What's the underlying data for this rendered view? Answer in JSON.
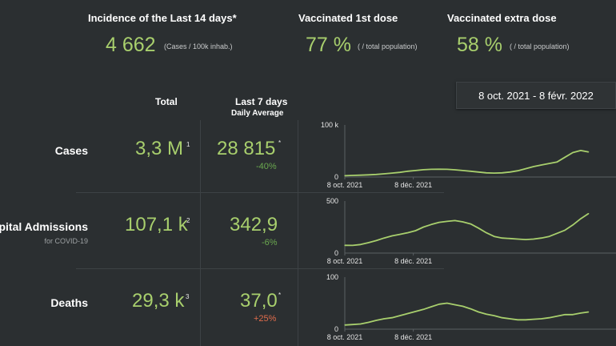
{
  "kpis": {
    "incidence": {
      "title": "Incidence of the Last 14 days*",
      "value": "4 662",
      "unit": "(Cases / 100k inhab.)"
    },
    "vacc1": {
      "title": "Vaccinated 1st dose",
      "value": "77 %",
      "unit": "( / total population)"
    },
    "vaccx": {
      "title": "Vaccinated extra dose",
      "value": "58 %",
      "unit": "( / total population)"
    }
  },
  "table": {
    "col_total": "Total",
    "col_last7": "Last 7 days",
    "col_daily": "Daily Average",
    "rows": [
      {
        "label": "Cases",
        "sub": "",
        "total": "3,3 M",
        "total_note": "1",
        "last7": "28 815",
        "last7_note": "*",
        "pct": "-40%",
        "trend": "down"
      },
      {
        "label": "Hospital Admissions",
        "sub": "for COVID-19",
        "total": "107,1 k",
        "total_note": "2",
        "last7": "342,9",
        "last7_note": "",
        "pct": "-6%",
        "trend": "down"
      },
      {
        "label": "Deaths",
        "sub": "",
        "total": "29,3 k",
        "total_note": "3",
        "last7": "37,0",
        "last7_note": "*",
        "pct": "+25%",
        "trend": "up"
      }
    ]
  },
  "date_range": "8 oct. 2021 - 8 févr. 2022",
  "colors": {
    "accent": "#a8cf6d",
    "background": "#2b2f31",
    "down": "#6aa84f",
    "up": "#e06c4c"
  },
  "chart_data": [
    {
      "type": "line",
      "name": "cases",
      "x_ticks": [
        "8 oct. 2021",
        "8 déc. 2021"
      ],
      "y_ticks": [
        "0",
        "100 k"
      ],
      "ylim": [
        0,
        100000
      ],
      "x": [
        0,
        7,
        14,
        21,
        28,
        35,
        42,
        49,
        56,
        63,
        70,
        77,
        84,
        91,
        98,
        105,
        112,
        119,
        126,
        133,
        140,
        147,
        154,
        161,
        168,
        175,
        182,
        189,
        196,
        203,
        210,
        217
      ],
      "values": [
        2500,
        3000,
        3500,
        4200,
        5000,
        6200,
        7500,
        9000,
        11000,
        12500,
        14000,
        14800,
        15000,
        14800,
        13800,
        12500,
        11000,
        9500,
        8000,
        7500,
        8000,
        9500,
        12000,
        16000,
        20000,
        23000,
        26000,
        29000,
        38000,
        47000,
        51000,
        48000
      ]
    },
    {
      "type": "line",
      "name": "hospital_admissions",
      "x_ticks": [
        "8 oct. 2021",
        "8 déc. 2021"
      ],
      "y_ticks": [
        "0",
        "500"
      ],
      "ylim": [
        0,
        500
      ],
      "x": [
        0,
        7,
        14,
        21,
        28,
        35,
        42,
        49,
        56,
        63,
        70,
        77,
        84,
        91,
        98,
        105,
        112,
        119,
        126,
        133,
        140,
        147,
        154,
        161,
        168,
        175,
        182,
        189,
        196,
        203,
        210,
        217
      ],
      "values": [
        75,
        74,
        82,
        100,
        120,
        145,
        165,
        180,
        195,
        215,
        250,
        275,
        295,
        305,
        312,
        300,
        280,
        240,
        195,
        160,
        145,
        140,
        135,
        130,
        135,
        145,
        160,
        190,
        220,
        270,
        330,
        380
      ]
    },
    {
      "type": "line",
      "name": "deaths",
      "x_ticks": [
        "8 oct. 2021",
        "8 déc. 2021"
      ],
      "y_ticks": [
        "0",
        "100"
      ],
      "ylim": [
        0,
        100
      ],
      "x": [
        0,
        7,
        14,
        21,
        28,
        35,
        42,
        49,
        56,
        63,
        70,
        77,
        84,
        91,
        98,
        105,
        112,
        119,
        126,
        133,
        140,
        147,
        154,
        161,
        168,
        175,
        182,
        189,
        196,
        203,
        210,
        217
      ],
      "values": [
        8,
        9,
        10,
        13,
        17,
        20,
        22,
        26,
        30,
        34,
        38,
        43,
        48,
        50,
        47,
        44,
        39,
        33,
        29,
        26,
        22,
        20,
        18,
        18,
        19,
        20,
        22,
        25,
        28,
        28,
        31,
        33
      ]
    }
  ]
}
